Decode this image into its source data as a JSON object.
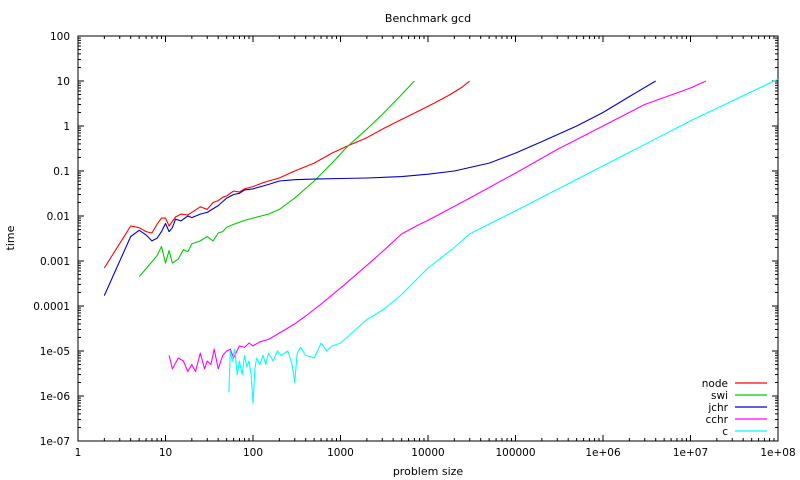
{
  "chart_data": {
    "type": "line",
    "title": "Benchmark gcd",
    "xlabel": "problem size",
    "ylabel": "time",
    "xscale": "log",
    "yscale": "log",
    "xlim": [
      1,
      100000000
    ],
    "ylim": [
      1e-07,
      100
    ],
    "xticks": [
      {
        "value": 1,
        "label": "1"
      },
      {
        "value": 10,
        "label": "10"
      },
      {
        "value": 100,
        "label": "100"
      },
      {
        "value": 1000,
        "label": "1000"
      },
      {
        "value": 10000,
        "label": "10000"
      },
      {
        "value": 100000,
        "label": "100000"
      },
      {
        "value": 1000000,
        "label": "1e+06"
      },
      {
        "value": 10000000,
        "label": "1e+07"
      },
      {
        "value": 100000000,
        "label": "1e+08"
      }
    ],
    "yticks": [
      {
        "value": 100,
        "label": "100"
      },
      {
        "value": 10,
        "label": "10"
      },
      {
        "value": 1,
        "label": "1"
      },
      {
        "value": 0.1,
        "label": "0.1"
      },
      {
        "value": 0.01,
        "label": "0.01"
      },
      {
        "value": 0.001,
        "label": "0.001"
      },
      {
        "value": 0.0001,
        "label": "0.0001"
      },
      {
        "value": 1e-05,
        "label": "1e-05"
      },
      {
        "value": 1e-06,
        "label": "1e-06"
      },
      {
        "value": 1e-07,
        "label": "1e-07"
      }
    ],
    "legend_position": "bottom-right",
    "series": [
      {
        "name": "node",
        "color": "#ff0000",
        "points": [
          [
            2,
            0.0007
          ],
          [
            4,
            0.006
          ],
          [
            5,
            0.0055
          ],
          [
            6,
            0.0045
          ],
          [
            7,
            0.0042
          ],
          [
            8,
            0.0065
          ],
          [
            9,
            0.009
          ],
          [
            10,
            0.009
          ],
          [
            11,
            0.006
          ],
          [
            13,
            0.0095
          ],
          [
            15,
            0.011
          ],
          [
            18,
            0.0105
          ],
          [
            20,
            0.012
          ],
          [
            25,
            0.016
          ],
          [
            30,
            0.014
          ],
          [
            35,
            0.02
          ],
          [
            40,
            0.022
          ],
          [
            45,
            0.026
          ],
          [
            50,
            0.028
          ],
          [
            60,
            0.036
          ],
          [
            70,
            0.034
          ],
          [
            80,
            0.04
          ],
          [
            100,
            0.045
          ],
          [
            130,
            0.055
          ],
          [
            200,
            0.07
          ],
          [
            300,
            0.1
          ],
          [
            500,
            0.15
          ],
          [
            800,
            0.25
          ],
          [
            1200,
            0.36
          ],
          [
            2000,
            0.55
          ],
          [
            3000,
            0.85
          ],
          [
            5000,
            1.4
          ],
          [
            8000,
            2.2
          ],
          [
            12000,
            3.3
          ],
          [
            18000,
            5.0
          ],
          [
            25000,
            7.5
          ],
          [
            30000,
            10
          ]
        ]
      },
      {
        "name": "swi",
        "color": "#00cc00",
        "points": [
          [
            5,
            0.00045
          ],
          [
            8,
            0.0013
          ],
          [
            9,
            0.0021
          ],
          [
            10,
            0.0009
          ],
          [
            11,
            0.0017
          ],
          [
            12,
            0.0009
          ],
          [
            14,
            0.0011
          ],
          [
            16,
            0.0018
          ],
          [
            18,
            0.0016
          ],
          [
            20,
            0.0024
          ],
          [
            25,
            0.0028
          ],
          [
            30,
            0.0035
          ],
          [
            35,
            0.0028
          ],
          [
            40,
            0.0042
          ],
          [
            45,
            0.0045
          ],
          [
            50,
            0.0056
          ],
          [
            60,
            0.0065
          ],
          [
            80,
            0.008
          ],
          [
            100,
            0.009
          ],
          [
            150,
            0.011
          ],
          [
            200,
            0.014
          ],
          [
            300,
            0.025
          ],
          [
            500,
            0.06
          ],
          [
            800,
            0.15
          ],
          [
            1200,
            0.35
          ],
          [
            2000,
            0.85
          ],
          [
            3000,
            1.8
          ],
          [
            5000,
            5
          ],
          [
            7000,
            10
          ]
        ]
      },
      {
        "name": "jchr",
        "color": "#0000cc",
        "points": [
          [
            2,
            0.00017
          ],
          [
            4,
            0.0035
          ],
          [
            5,
            0.0048
          ],
          [
            6,
            0.0038
          ],
          [
            7,
            0.0028
          ],
          [
            8,
            0.0032
          ],
          [
            9,
            0.0045
          ],
          [
            10,
            0.0068
          ],
          [
            11,
            0.0045
          ],
          [
            12,
            0.0055
          ],
          [
            13,
            0.0085
          ],
          [
            15,
            0.0078
          ],
          [
            18,
            0.01
          ],
          [
            20,
            0.0092
          ],
          [
            25,
            0.011
          ],
          [
            30,
            0.012
          ],
          [
            40,
            0.017
          ],
          [
            50,
            0.025
          ],
          [
            60,
            0.03
          ],
          [
            70,
            0.032
          ],
          [
            80,
            0.038
          ],
          [
            100,
            0.04
          ],
          [
            150,
            0.05
          ],
          [
            200,
            0.06
          ],
          [
            300,
            0.064
          ],
          [
            500,
            0.066
          ],
          [
            1000,
            0.068
          ],
          [
            2000,
            0.07
          ],
          [
            5000,
            0.075
          ],
          [
            10000,
            0.085
          ],
          [
            20000,
            0.1
          ],
          [
            50000,
            0.15
          ],
          [
            100000,
            0.25
          ],
          [
            200000,
            0.45
          ],
          [
            500000,
            1
          ],
          [
            1000000,
            2
          ],
          [
            2000000,
            4.5
          ],
          [
            4000000,
            10
          ]
        ]
      },
      {
        "name": "cchr",
        "color": "#ff00ff",
        "points": [
          [
            11,
            8e-06
          ],
          [
            12,
            4e-06
          ],
          [
            14,
            7e-06
          ],
          [
            16,
            6e-06
          ],
          [
            18,
            3.5e-06
          ],
          [
            20,
            5e-06
          ],
          [
            22,
            3.5e-06
          ],
          [
            25,
            9e-06
          ],
          [
            28,
            4e-06
          ],
          [
            30,
            6e-06
          ],
          [
            33,
            5e-06
          ],
          [
            36,
            1.1e-05
          ],
          [
            40,
            4e-06
          ],
          [
            45,
            8e-06
          ],
          [
            50,
            1e-05
          ],
          [
            55,
            1.1e-05
          ],
          [
            60,
            7e-06
          ],
          [
            70,
            1.3e-05
          ],
          [
            80,
            1.2e-05
          ],
          [
            90,
            1.5e-05
          ],
          [
            100,
            1.3e-05
          ],
          [
            120,
            1.6e-05
          ],
          [
            150,
            1.8e-05
          ],
          [
            200,
            2.5e-05
          ],
          [
            300,
            4e-05
          ],
          [
            400,
            6e-05
          ],
          [
            600,
            0.00011
          ],
          [
            1000,
            0.00025
          ],
          [
            2000,
            0.0008
          ],
          [
            3000,
            0.0016
          ],
          [
            5000,
            0.004
          ],
          [
            8000,
            0.0065
          ],
          [
            10000,
            0.008
          ],
          [
            30000,
            0.025
          ],
          [
            100000,
            0.09
          ],
          [
            300000,
            0.3
          ],
          [
            1000000,
            1
          ],
          [
            3000000,
            3
          ],
          [
            10000000,
            7
          ],
          [
            15000000,
            10
          ]
        ]
      },
      {
        "name": "c",
        "color": "#00ffff",
        "points": [
          [
            53,
            1.2e-06
          ],
          [
            55,
            1e-05
          ],
          [
            58,
            6e-06
          ],
          [
            62,
            1.1e-05
          ],
          [
            66,
            3e-06
          ],
          [
            70,
            6e-06
          ],
          [
            75,
            3e-06
          ],
          [
            80,
            8e-06
          ],
          [
            85,
            4.5e-06
          ],
          [
            90,
            6e-06
          ],
          [
            95,
            3e-06
          ],
          [
            100,
            7e-07
          ],
          [
            105,
            4e-06
          ],
          [
            110,
            7e-06
          ],
          [
            120,
            5e-06
          ],
          [
            130,
            8e-06
          ],
          [
            140,
            5e-06
          ],
          [
            150,
            9e-06
          ],
          [
            170,
            6e-06
          ],
          [
            190,
            1e-05
          ],
          [
            210,
            8e-06
          ],
          [
            250,
            1e-05
          ],
          [
            280,
            5e-06
          ],
          [
            300,
            2e-06
          ],
          [
            320,
            9e-06
          ],
          [
            350,
            1.2e-05
          ],
          [
            400,
            8e-06
          ],
          [
            500,
            7e-06
          ],
          [
            600,
            1.5e-05
          ],
          [
            700,
            1e-05
          ],
          [
            800,
            1.3e-05
          ],
          [
            1000,
            1.5e-05
          ],
          [
            1500,
            3e-05
          ],
          [
            2000,
            5e-05
          ],
          [
            3000,
            8e-05
          ],
          [
            5000,
            0.00018
          ],
          [
            10000,
            0.0007
          ],
          [
            20000,
            0.002
          ],
          [
            30000,
            0.004
          ],
          [
            100000,
            0.013
          ],
          [
            1000000,
            0.13
          ],
          [
            10000000,
            1.3
          ],
          [
            100000000,
            11
          ]
        ]
      }
    ]
  }
}
